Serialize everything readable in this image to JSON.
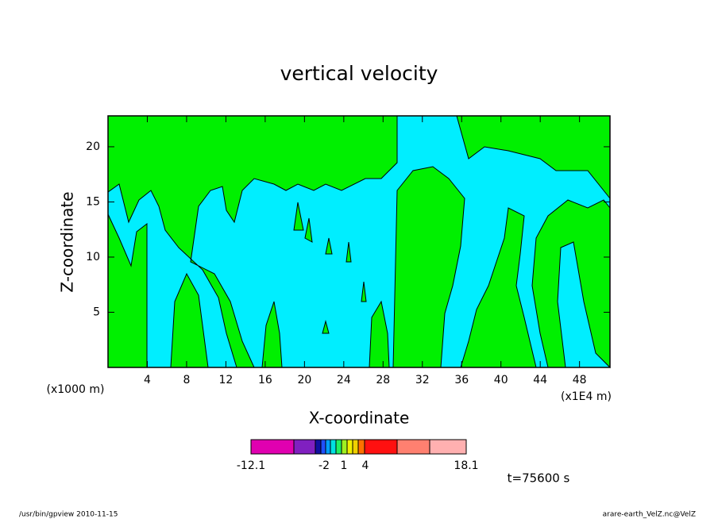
{
  "chart_data": {
    "type": "contour",
    "title": "vertical velocity",
    "xlabel": "X-coordinate",
    "ylabel": "Z-coordinate",
    "xlabel_units": "(x1E4 m)",
    "ylabel_units": "(x1000 m)",
    "xlim": [
      0,
      51.1
    ],
    "ylim": [
      0,
      22.8
    ],
    "xticks": [
      4,
      8,
      12,
      16,
      20,
      24,
      28,
      32,
      36,
      40,
      44,
      48
    ],
    "yticks": [
      5,
      10,
      15,
      20
    ],
    "colorbar": {
      "colors": [
        "#e000b0",
        "#8020c0",
        "#1010a0",
        "#2050ff",
        "#00a0ff",
        "#00e0e0",
        "#20f060",
        "#a0f020",
        "#f0f000",
        "#f0d000",
        "#ff7000",
        "#ff1010",
        "#ff8070",
        "#ffb0b0"
      ],
      "ticks": [
        -12.1,
        -2,
        1,
        4,
        18.1
      ]
    },
    "annotation": "t=75600 s",
    "footer_left": "/usr/bin/gpview  2010-11-15",
    "footer_right": "arare-earth_VelZ.nc@VelZ"
  }
}
